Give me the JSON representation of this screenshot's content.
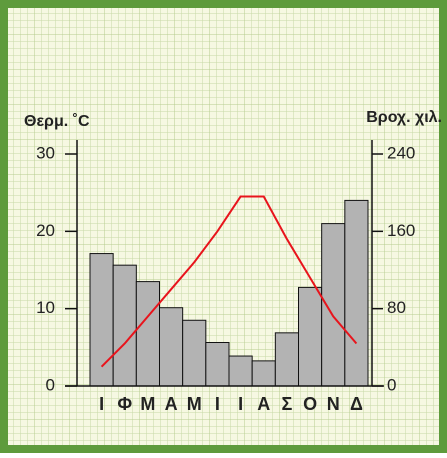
{
  "chart_data": {
    "type": "combo",
    "y_label": "Θερμ. ˚C",
    "y2_label": "Βροχ. χιλ.",
    "categories": [
      "Ι",
      "Φ",
      "Μ",
      "Α",
      "Μ",
      "Ι",
      "Ι",
      "Α",
      "Σ",
      "Ο",
      "Ν",
      "Δ"
    ],
    "series": [
      {
        "type": "bar",
        "axis": "y2",
        "color": "#b3b3b3",
        "values": [
          137,
          125,
          108,
          81,
          68,
          45,
          31,
          26,
          55,
          102,
          168,
          192
        ]
      },
      {
        "type": "line",
        "axis": "y",
        "color": "#e8141c",
        "values": [
          2.5,
          5.5,
          9,
          12.5,
          16,
          20,
          24.5,
          24.5,
          19,
          14,
          9,
          5.5
        ]
      }
    ],
    "ylim": [
      0,
      30
    ],
    "yticks": [
      0,
      10,
      20,
      30
    ],
    "y2lim": [
      0,
      240
    ],
    "y2ticks": [
      0,
      80,
      160,
      240
    ]
  }
}
